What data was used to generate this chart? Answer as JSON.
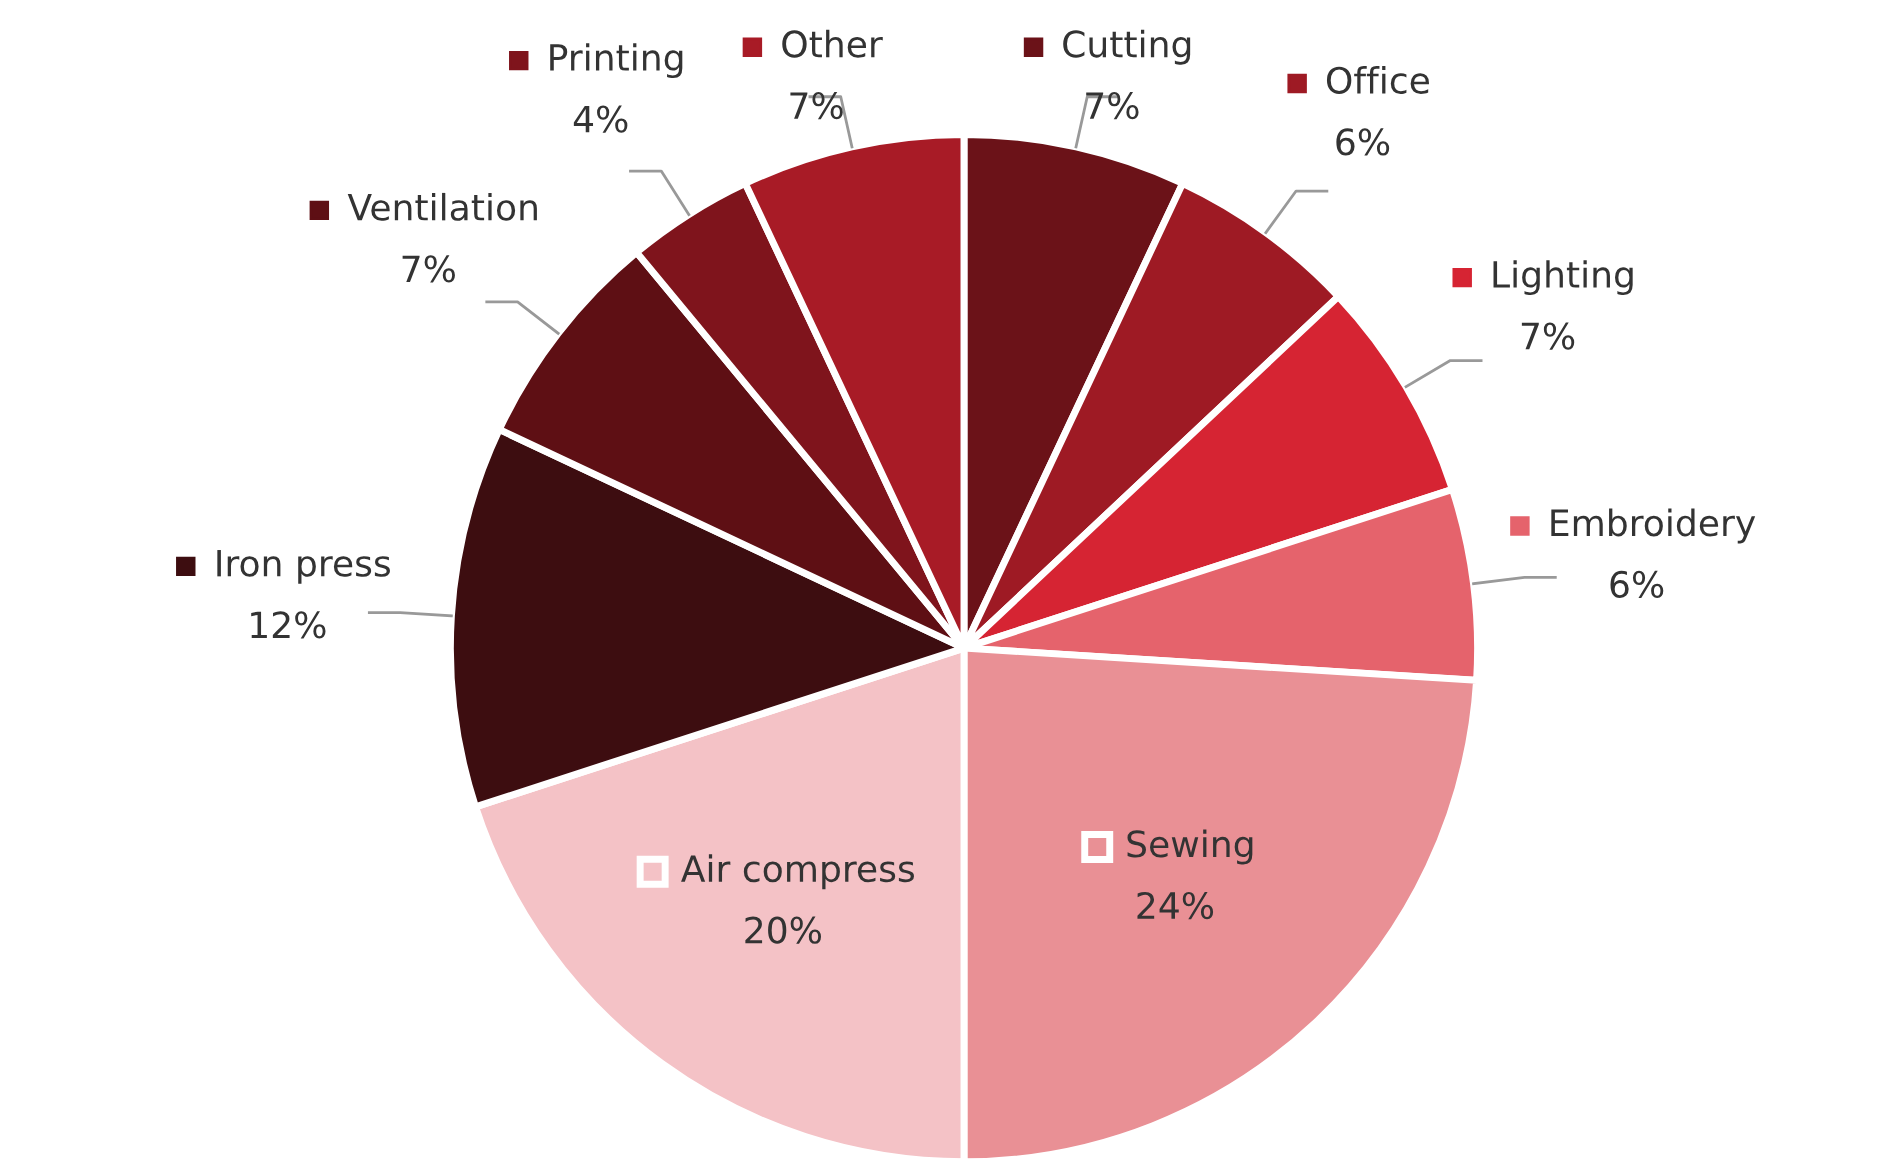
{
  "chart_data": {
    "type": "pie",
    "categories": [
      "Cutting",
      "Office",
      "Lighting",
      "Embroidery",
      "Sewing",
      "Air compress",
      "Iron press",
      "Ventilation",
      "Printing",
      "Other"
    ],
    "values": [
      7,
      6,
      7,
      6,
      24,
      20,
      12,
      7,
      4,
      7
    ],
    "colors": [
      "#6b1218",
      "#9e1a24",
      "#d62433",
      "#e5636c",
      "#e99095",
      "#f4c2c6",
      "#3d0d10",
      "#5e0f14",
      "#7f141c",
      "#a81b26"
    ],
    "value_labels": [
      "7%",
      "6%",
      "7%",
      "6%",
      "24%",
      "20%",
      "12%",
      "7%",
      "4%",
      "7%"
    ],
    "legend": "top"
  }
}
